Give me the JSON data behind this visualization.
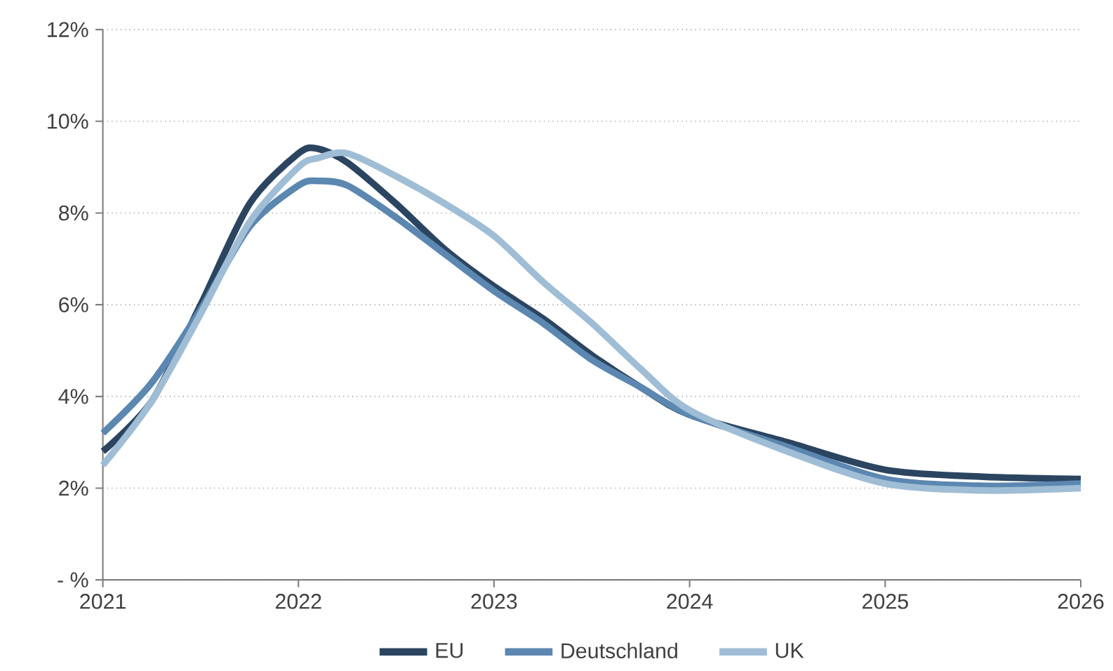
{
  "chart_data": {
    "type": "line",
    "x": [
      2021,
      2021.25,
      2021.5,
      2021.75,
      2022,
      2022.1,
      2022.25,
      2022.5,
      2022.75,
      2023,
      2023.25,
      2023.5,
      2023.75,
      2024,
      2024.5,
      2025,
      2025.5,
      2026
    ],
    "series": [
      {
        "name": "EU",
        "color": "#2b4561",
        "values": [
          2.8,
          3.9,
          6.0,
          8.2,
          9.3,
          9.4,
          9.1,
          8.2,
          7.2,
          6.4,
          5.7,
          4.9,
          4.2,
          3.6,
          3.0,
          2.4,
          2.25,
          2.2
        ]
      },
      {
        "name": "Deutschland",
        "color": "#5b87b0",
        "values": [
          3.2,
          4.3,
          5.9,
          7.7,
          8.6,
          8.7,
          8.6,
          7.9,
          7.1,
          6.3,
          5.6,
          4.8,
          4.2,
          3.6,
          2.9,
          2.2,
          2.05,
          2.1
        ]
      },
      {
        "name": "UK",
        "color": "#a0bdd6",
        "values": [
          2.5,
          3.9,
          5.8,
          7.8,
          9.0,
          9.2,
          9.3,
          8.8,
          8.2,
          7.5,
          6.5,
          5.6,
          4.6,
          3.7,
          2.8,
          2.1,
          1.95,
          2.0
        ]
      }
    ],
    "xlim": [
      2021,
      2026
    ],
    "xticks": [
      2021,
      2022,
      2023,
      2024,
      2025,
      2026
    ],
    "ylim": [
      0,
      12
    ],
    "yticks": [
      {
        "value": 0,
        "label": "- %"
      },
      {
        "value": 2,
        "label": "2%"
      },
      {
        "value": 4,
        "label": "4%"
      },
      {
        "value": 6,
        "label": "6%"
      },
      {
        "value": 8,
        "label": "8%"
      },
      {
        "value": 10,
        "label": "10%"
      },
      {
        "value": 12,
        "label": "12%"
      }
    ],
    "grid": "y",
    "legend": "bottom",
    "line_style": "solid",
    "marker": "none"
  }
}
